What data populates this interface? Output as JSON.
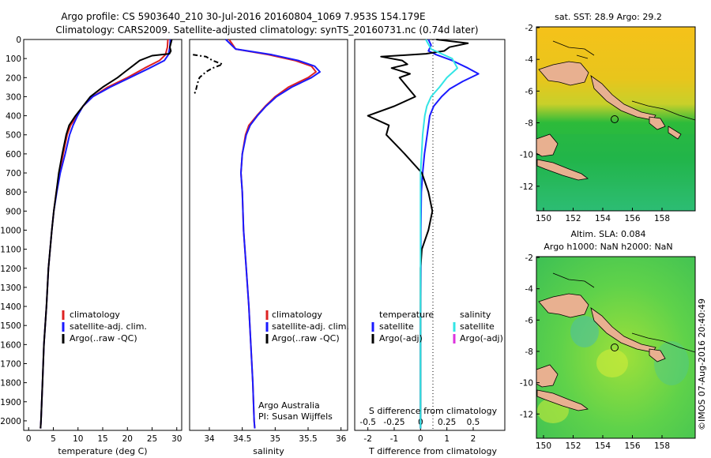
{
  "title_line1": "Argo profile: CS 5903640_210 30-Jul-2016 20160804_1069 7.953S 154.179E",
  "title_line2": "Climatology: CARS2009. Satellite-adjusted climatology: synTS_20160731.nc (0.74d later)",
  "side_text": "©IMOS 07-Aug-2016 20:40:49",
  "colors": {
    "climatology": "#dd2222",
    "satellite": "#1a1aff",
    "argo": "#000000",
    "salinity_sat": "#33e5e5",
    "salinity_argo": "#dd33dd",
    "land": "#e8b090"
  },
  "chart_data": [
    {
      "type": "line",
      "xlabel": "temperature (deg C)",
      "xlim": [
        -1,
        31
      ],
      "ylim": [
        2050,
        0
      ],
      "xticks": [
        "0",
        "5",
        "10",
        "15",
        "20",
        "25",
        "30"
      ],
      "yticks": [
        "0",
        "100",
        "200",
        "300",
        "400",
        "500",
        "600",
        "700",
        "800",
        "900",
        "1000",
        "1100",
        "1200",
        "1300",
        "1400",
        "1500",
        "1600",
        "1700",
        "1800",
        "1900",
        "2000"
      ],
      "legend": [
        "climatology",
        "satellite-adj. clim.",
        "Argo(..raw -QC)"
      ],
      "series": [
        {
          "key": "climatology",
          "depth": [
            0,
            40,
            80,
            110,
            150,
            200,
            250,
            300,
            350,
            400,
            450,
            500,
            600,
            700,
            800,
            900,
            1000,
            1200,
            1400,
            1600,
            1800,
            2000,
            2040
          ],
          "values": [
            28.2,
            28.1,
            27.7,
            26.5,
            23.5,
            20,
            16,
            13,
            11,
            9.8,
            8.5,
            7.8,
            7,
            6.2,
            5.6,
            5.1,
            4.7,
            4,
            3.6,
            3.1,
            2.8,
            2.5,
            2.4
          ]
        },
        {
          "key": "satellite",
          "depth": [
            0,
            40,
            80,
            110,
            150,
            200,
            250,
            300,
            350,
            400,
            450,
            500,
            600,
            700,
            800,
            900,
            1000,
            1200,
            1400,
            1600,
            1800,
            2000,
            2040
          ],
          "values": [
            28.7,
            28.6,
            28.3,
            27.5,
            24.5,
            20.5,
            16.5,
            13,
            11,
            9.9,
            9,
            8.3,
            7.4,
            6.4,
            5.7,
            5.1,
            4.7,
            4,
            3.6,
            3.1,
            2.8,
            2.5,
            2.4
          ]
        },
        {
          "key": "argo",
          "depth": [
            0,
            20,
            40,
            60,
            75,
            85,
            110,
            140,
            170,
            200,
            250,
            300,
            350,
            400,
            450,
            500,
            600,
            700,
            800,
            900,
            1000,
            1200,
            1400,
            1600,
            1800,
            2000,
            2040
          ],
          "values": [
            29,
            28.8,
            28.6,
            28.8,
            28.5,
            25,
            22.5,
            21,
            19.5,
            18,
            15,
            12.5,
            11,
            9.5,
            8.2,
            7.6,
            6.8,
            6.1,
            5.6,
            5.1,
            4.7,
            4,
            3.6,
            3.1,
            2.8,
            2.5,
            2.4
          ]
        }
      ]
    },
    {
      "type": "line",
      "xlabel": "salinity",
      "xlim": [
        33.7,
        36.1
      ],
      "ylim": [
        2050,
        0
      ],
      "xticks": [
        "34",
        "34.5",
        "35",
        "35.5",
        "36"
      ],
      "legend": [
        "climatology",
        "satellite-adj. clim.",
        "Argo(..raw -QC)"
      ],
      "annotation": [
        "Argo Australia",
        "PI: Susan Wijffels"
      ],
      "series": [
        {
          "key": "climatology",
          "depth": [
            0,
            50,
            80,
            110,
            140,
            170,
            200,
            250,
            300,
            350,
            400,
            450,
            500,
            600,
            700,
            800,
            1000,
            1200,
            1400,
            1600,
            1800,
            2000,
            2040
          ],
          "values": [
            34.3,
            34.4,
            34.9,
            35.3,
            35.55,
            35.62,
            35.5,
            35.2,
            35,
            34.85,
            34.72,
            34.6,
            34.55,
            34.5,
            34.48,
            34.5,
            34.52,
            34.56,
            34.6,
            34.63,
            34.66,
            34.68,
            34.69
          ]
        },
        {
          "key": "satellite",
          "depth": [
            0,
            50,
            80,
            110,
            140,
            170,
            200,
            250,
            300,
            350,
            400,
            450,
            500,
            600,
            700,
            800,
            1000,
            1200,
            1400,
            1600,
            1800,
            2000,
            2040
          ],
          "values": [
            34.25,
            34.4,
            34.95,
            35.35,
            35.6,
            35.68,
            35.55,
            35.25,
            35.02,
            34.86,
            34.73,
            34.62,
            34.56,
            34.5,
            34.48,
            34.5,
            34.52,
            34.56,
            34.6,
            34.63,
            34.66,
            34.68,
            34.69
          ]
        },
        {
          "key": "argo",
          "depth": [
            80,
            90,
            110,
            130,
            150,
            170,
            200,
            230,
            260,
            280,
            290
          ],
          "values": [
            33.75,
            33.95,
            34.05,
            34.2,
            34.05,
            33.95,
            33.85,
            33.82,
            33.8,
            33.78,
            33.75
          ]
        }
      ]
    },
    {
      "type": "line",
      "xlabel": "T difference from climatology",
      "xlabel_top": "S difference from climatology",
      "xlim": [
        -2.5,
        3.2
      ],
      "ylim": [
        2050,
        0
      ],
      "xticks": [
        "-2",
        "-1",
        "0",
        "1",
        "2"
      ],
      "xticks_top": [
        "-0.5",
        "-0.25",
        "0",
        "0.25",
        "0.5"
      ],
      "legend_headers": [
        "temperature",
        "salinity"
      ],
      "legend_left": [
        "satellite",
        "Argo(-adj)"
      ],
      "legend_right": [
        "satellite",
        "Argo(-adj)"
      ],
      "series": [
        {
          "key": "T satellite",
          "depth": [
            0,
            30,
            60,
            80,
            110,
            150,
            180,
            220,
            260,
            300,
            350,
            400,
            500,
            600,
            700,
            800,
            900,
            1000,
            1200,
            1500,
            1800,
            2000,
            2040
          ],
          "values": [
            0.3,
            0.4,
            0.3,
            0.6,
            1.2,
            1.8,
            2.2,
            1.6,
            1.1,
            0.8,
            0.5,
            0.35,
            0.25,
            0.15,
            0.08,
            0.03,
            0.02,
            0.01,
            0.01,
            0,
            0,
            0,
            0
          ]
        },
        {
          "key": "T argo",
          "depth": [
            0,
            20,
            40,
            60,
            75,
            90,
            110,
            130,
            150,
            180,
            200,
            250,
            300,
            350,
            400,
            450,
            500,
            600,
            700,
            800,
            900,
            1000,
            1100,
            1200,
            1500,
            1800,
            2000,
            2040
          ],
          "values": [
            0.6,
            1.8,
            1.1,
            0.9,
            0.2,
            -1.5,
            -0.7,
            -0.5,
            -1.1,
            -0.4,
            -0.8,
            -0.5,
            -0.2,
            -1,
            -2,
            -1.2,
            -1.3,
            -0.6,
            0.05,
            0.3,
            0.45,
            0.3,
            0.05,
            0,
            0,
            0,
            0,
            0
          ]
        },
        {
          "key": "S satellite",
          "depth": [
            0,
            50,
            100,
            150,
            200,
            250,
            300,
            350,
            400,
            450,
            500,
            600,
            700,
            800,
            900,
            1000,
            1200,
            1500,
            1800,
            2000,
            2040
          ],
          "values": [
            0.05,
            0.1,
            0.3,
            0.35,
            0.25,
            0.18,
            0.1,
            0.06,
            0.04,
            0.03,
            0.02,
            0.01,
            0,
            0,
            0,
            0,
            0,
            0,
            0,
            0,
            0
          ]
        }
      ]
    }
  ],
  "maps": [
    {
      "title": "sat. SST: 28.9 Argo: 29.2",
      "xticks": [
        "150",
        "152",
        "154",
        "156",
        "158"
      ],
      "yticks": [
        "-2",
        "-4",
        "-6",
        "-8",
        "-10",
        "-12"
      ]
    },
    {
      "title_line1": "Altim. SLA: 0.084",
      "title_line2": "Argo h1000: NaN h2000: NaN",
      "xticks": [
        "150",
        "152",
        "154",
        "156",
        "158"
      ],
      "yticks": [
        "-2",
        "-4",
        "-6",
        "-8",
        "-10",
        "-12"
      ]
    }
  ]
}
